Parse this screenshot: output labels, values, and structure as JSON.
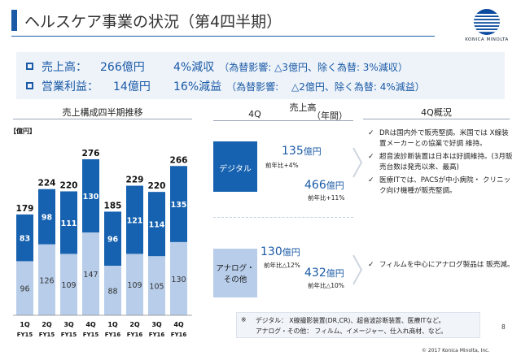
{
  "slide": {
    "title": "ヘルスケア事業の状況（第4四半期）",
    "logo_text": "KONICA MINOLTA",
    "page_number": "8",
    "copyright": "© 2017 Konica Minolta, Inc."
  },
  "summary": {
    "sales": {
      "label": "売上高：",
      "value": "266億円",
      "change": "4%減収",
      "note": "（為替影響: △3億円、除く為替: 3%減収）"
    },
    "op_income": {
      "label": "営業利益：",
      "value": "14億円",
      "change": "16%減益",
      "note": "（為替影響: 　△2億円、除く為替: 4%減益）"
    }
  },
  "headers": {
    "chart": "売上構成四半期推移",
    "sales_4q": "4Q",
    "sales_center": "売上高",
    "sales_year": "（年間）",
    "overview": "4Q概況"
  },
  "chart_data": {
    "type": "bar",
    "unit_label": "【億円】",
    "categories": [
      [
        "1Q",
        "FY15"
      ],
      [
        "2Q",
        "FY15"
      ],
      [
        "3Q",
        "FY15"
      ],
      [
        "4Q",
        "FY15"
      ],
      [
        "1Q",
        "FY16"
      ],
      [
        "2Q",
        "FY16"
      ],
      [
        "3Q",
        "FY16"
      ],
      [
        "4Q",
        "FY16"
      ]
    ],
    "series": [
      {
        "name": "アナログ・その他",
        "values": [
          96,
          126,
          109,
          147,
          88,
          109,
          105,
          130
        ],
        "color": "#b7cdea",
        "label_color": "#333333"
      },
      {
        "name": "デジタル",
        "values": [
          83,
          98,
          111,
          130,
          96,
          121,
          114,
          135
        ],
        "color": "#1662b0",
        "label_color": "#ffffff"
      }
    ],
    "totals": [
      179,
      224,
      220,
      276,
      185,
      229,
      220,
      266
    ],
    "ylim": [
      0,
      300
    ]
  },
  "segments": {
    "digital": {
      "name": "デジタル",
      "q4_value": "135",
      "q4_unit": "億円",
      "q4_yoy": "前年比+4%",
      "annual_value": "466",
      "annual_unit": "億円",
      "annual_yoy": "前年比+11%",
      "bullets": [
        "DRは国内外で販売堅調。米国では X線装置メーカーとの協業で好調 維持。",
        "超音波診断装置は日本は好調維持。(3月販売台数は発売以来、最高)",
        "医療ITでは、PACSが中小病院・ クリニック向け機種が販売堅調。"
      ]
    },
    "analog": {
      "name_line1": "アナログ・",
      "name_line2": "その他",
      "q4_value": "130",
      "q4_unit": "億円",
      "q4_yoy": "前年比△12%",
      "annual_value": "432",
      "annual_unit": "億円",
      "annual_yoy": "前年比△10%",
      "bullets": [
        "フィルムを中心にアナログ製品は 販売減。"
      ]
    }
  },
  "footnote": {
    "mark": "※",
    "line1": "デジタル： X線撮影装置(DR,CR)、超音波診断装置、医療ITなど。",
    "line2": "アナログ・その他： フィルム、イメージャー、仕入れ商材、など。"
  },
  "colors": {
    "accent": "#1a5aa6",
    "digital": "#1662b0",
    "analog": "#b7cdea"
  }
}
